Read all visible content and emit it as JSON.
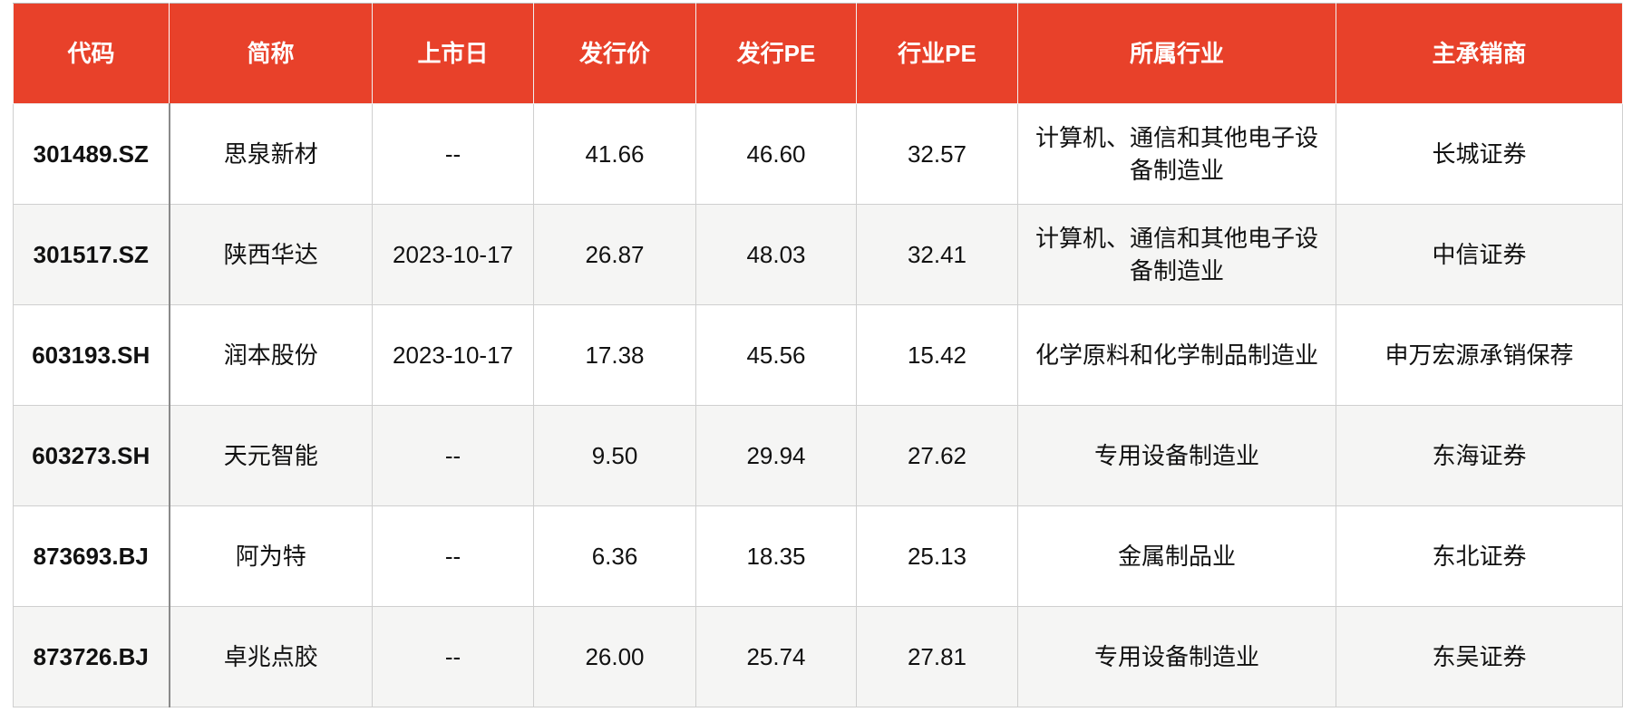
{
  "headers": [
    "代码",
    "简称",
    "上市日",
    "发行价",
    "发行PE",
    "行业PE",
    "所属行业",
    "主承销商"
  ],
  "rows": [
    [
      "301489.SZ",
      "思泉新材",
      "--",
      "41.66",
      "46.60",
      "32.57",
      "计算机、通信和其他电子设备制造业",
      "长城证券"
    ],
    [
      "301517.SZ",
      "陕西华达",
      "2023-10-17",
      "26.87",
      "48.03",
      "32.41",
      "计算机、通信和其他电子设备制造业",
      "中信证券"
    ],
    [
      "603193.SH",
      "润本股份",
      "2023-10-17",
      "17.38",
      "45.56",
      "15.42",
      "化学原料和化学制品制造业",
      "申万宏源承销保荐"
    ],
    [
      "603273.SH",
      "天元智能",
      "--",
      "9.50",
      "29.94",
      "27.62",
      "专用设备制造业",
      "东海证券"
    ],
    [
      "873693.BJ",
      "阿为特",
      "--",
      "6.36",
      "18.35",
      "25.13",
      "金属制品业",
      "东北证券"
    ],
    [
      "873726.BJ",
      "卓兆点胶",
      "--",
      "26.00",
      "25.74",
      "27.81",
      "专用设备制造业",
      "东吴证券"
    ]
  ],
  "colors": {
    "header_bg": "#E8412A",
    "header_text": "#FFFFFF",
    "alt_row_bg": "#F5F5F4"
  }
}
